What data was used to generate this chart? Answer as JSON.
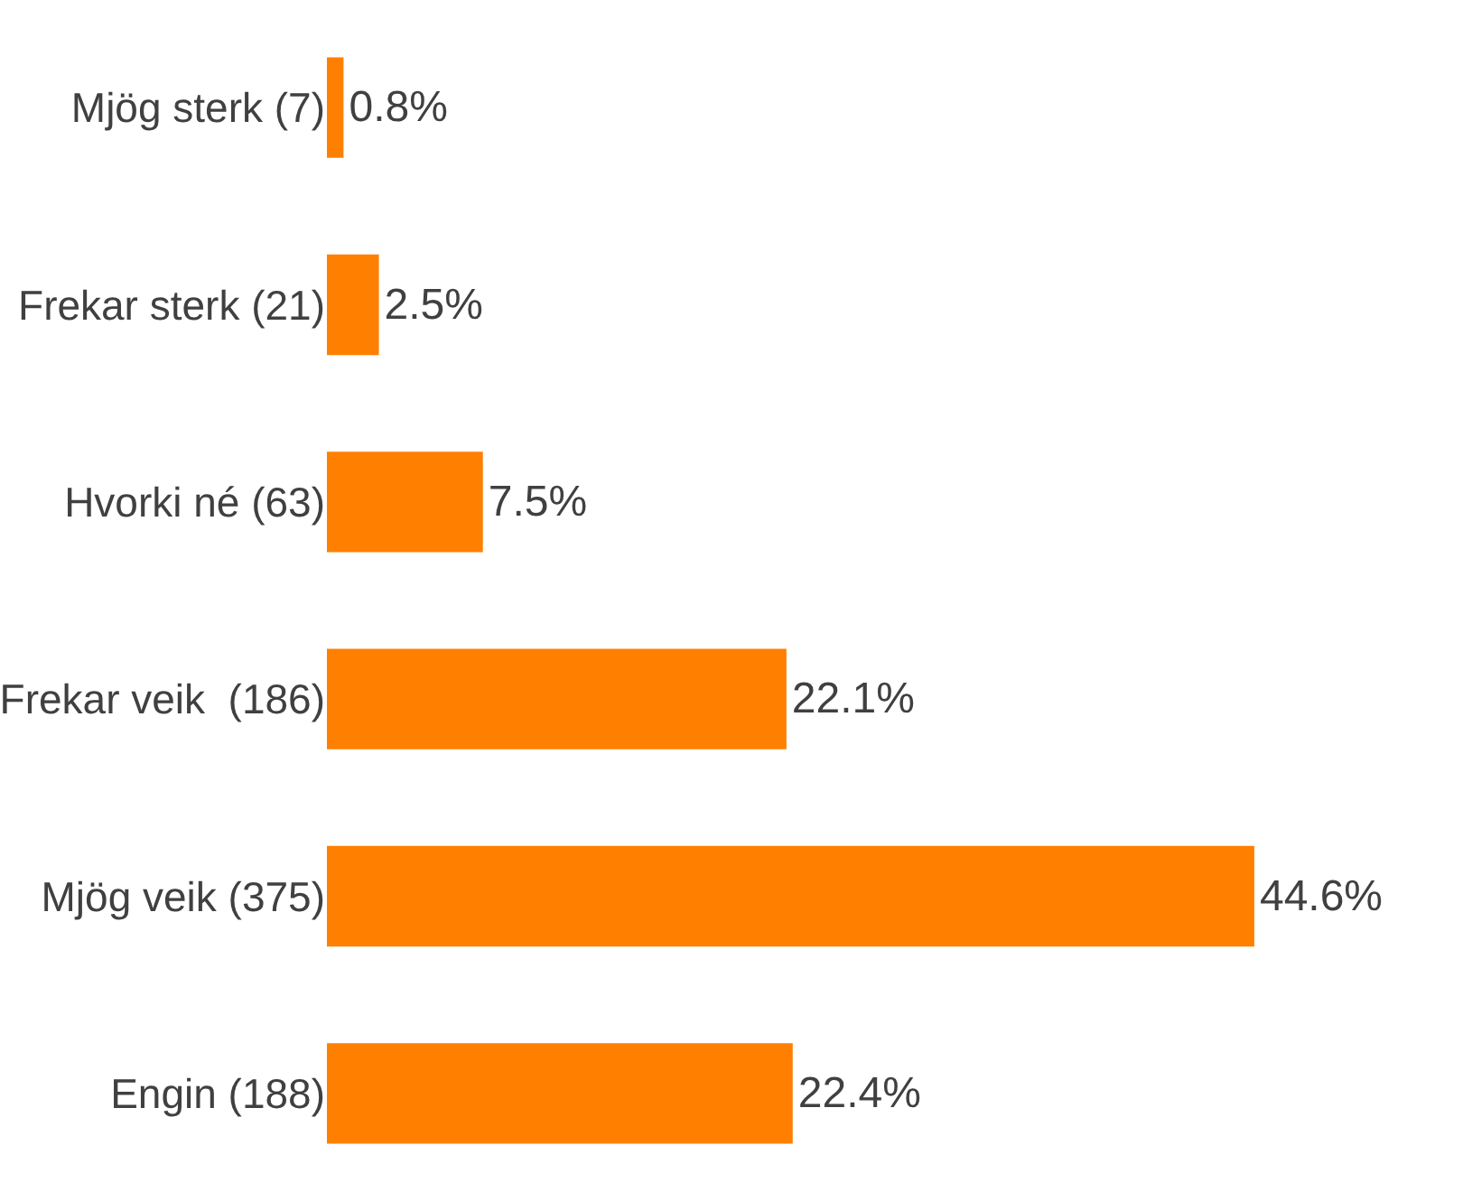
{
  "chart_data": {
    "type": "bar",
    "orientation": "horizontal",
    "categories": [
      "Mjög sterk (7)",
      "Frekar sterk (21)",
      "Hvorki né (63)",
      "Frekar veik  (186)",
      "Mjög veik (375)",
      "Engin (188)"
    ],
    "values": [
      0.8,
      2.5,
      7.5,
      22.1,
      44.6,
      22.4
    ],
    "value_labels": [
      "0.8%",
      "2.5%",
      "7.5%",
      "22.1%",
      "44.6%",
      "22.4%"
    ],
    "color": "#ff8000"
  }
}
